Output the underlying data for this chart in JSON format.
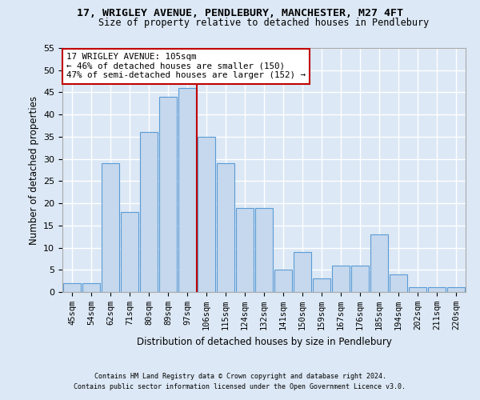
{
  "title": "17, WRIGLEY AVENUE, PENDLEBURY, MANCHESTER, M27 4FT",
  "subtitle": "Size of property relative to detached houses in Pendlebury",
  "xlabel": "Distribution of detached houses by size in Pendlebury",
  "ylabel": "Number of detached properties",
  "categories": [
    "45sqm",
    "54sqm",
    "62sqm",
    "71sqm",
    "80sqm",
    "89sqm",
    "97sqm",
    "106sqm",
    "115sqm",
    "124sqm",
    "132sqm",
    "141sqm",
    "150sqm",
    "159sqm",
    "167sqm",
    "176sqm",
    "185sqm",
    "194sqm",
    "202sqm",
    "211sqm",
    "220sqm"
  ],
  "values": [
    2,
    2,
    29,
    18,
    36,
    44,
    46,
    35,
    29,
    19,
    19,
    5,
    9,
    3,
    6,
    6,
    13,
    4,
    1,
    1,
    1
  ],
  "bar_color": "#c5d8ed",
  "bar_edge_color": "#5b9bd5",
  "vline_x_index": 7,
  "vline_color": "#c00000",
  "annotation_line1": "17 WRIGLEY AVENUE: 105sqm",
  "annotation_line2": "← 46% of detached houses are smaller (150)",
  "annotation_line3": "47% of semi-detached houses are larger (152) →",
  "annotation_box_color": "#c00000",
  "annotation_fill": "#ffffff",
  "ylim": [
    0,
    55
  ],
  "yticks": [
    0,
    5,
    10,
    15,
    20,
    25,
    30,
    35,
    40,
    45,
    50,
    55
  ],
  "footer1": "Contains HM Land Registry data © Crown copyright and database right 2024.",
  "footer2": "Contains public sector information licensed under the Open Government Licence v3.0.",
  "fig_bg_color": "#dce8f5",
  "plot_bg_color": "#dce8f5",
  "grid_color": "#ffffff"
}
